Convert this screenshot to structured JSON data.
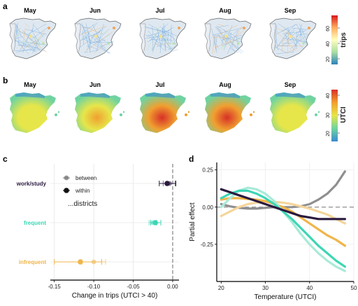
{
  "panels": {
    "a": {
      "letter": "a",
      "months": [
        "May",
        "Jun",
        "Jul",
        "Aug",
        "Sep"
      ],
      "legend_title": "trips",
      "legend_ticks": [
        "20",
        "40",
        "60"
      ],
      "colors": [
        "#2b83ba",
        "#abdda4",
        "#ffffbf",
        "#fdae61",
        "#d7191c"
      ]
    },
    "b": {
      "letter": "b",
      "months": [
        "May",
        "Jun",
        "Jul",
        "Aug",
        "Sep"
      ],
      "legend_title": "UTCI",
      "legend_ticks": [
        "20",
        "30",
        "40"
      ],
      "colors": [
        "#3b8bd0",
        "#6fd3a0",
        "#e6e64a",
        "#f0a030",
        "#d73027"
      ],
      "map_intensity": [
        0.35,
        0.5,
        0.85,
        0.8,
        0.45
      ]
    }
  },
  "chart_data": [
    {
      "panel": "c",
      "type": "scatter",
      "title": "",
      "xlabel": "Change in trips (UTCI > 40)",
      "ylabel": "",
      "xlim": [
        -0.155,
        0.008
      ],
      "xticks": [
        -0.15,
        -0.1,
        -0.05,
        0.0
      ],
      "xtick_labels": [
        "-0.15",
        "-0.10",
        "-0.05",
        "0.00"
      ],
      "categories": [
        "work/study",
        "frequent",
        "infrequent"
      ],
      "category_colors": [
        "#2a1a3f",
        "#3dd6b5",
        "#f0b54a"
      ],
      "series": [
        {
          "name": "between",
          "values": [
            -0.004,
            -0.025,
            -0.1
          ],
          "ci_low": [
            -0.012,
            -0.03,
            -0.115
          ],
          "ci_high": [
            0.003,
            -0.02,
            -0.085
          ]
        },
        {
          "name": "within",
          "values": [
            -0.007,
            -0.022,
            -0.117
          ],
          "ci_low": [
            -0.017,
            -0.028,
            -0.15
          ],
          "ci_high": [
            0.004,
            -0.015,
            -0.09
          ]
        }
      ],
      "legend": {
        "title": "...districts",
        "placement": "top-right"
      }
    },
    {
      "panel": "d",
      "type": "line",
      "title": "",
      "xlabel": "Temperature (UTCI)",
      "ylabel": "Partial effect",
      "xlim": [
        19,
        50
      ],
      "ylim": [
        -0.5,
        0.3
      ],
      "xticks": [
        20,
        30,
        40,
        50
      ],
      "yticks": [
        -0.25,
        0.0,
        0.25
      ],
      "ytick_labels": [
        "-0.25",
        "0.00",
        "0.25"
      ],
      "reference_line": 0.0,
      "x": [
        20,
        22,
        24,
        26,
        28,
        30,
        32,
        34,
        36,
        38,
        40,
        42,
        44,
        46,
        48
      ],
      "series": [
        {
          "color": "#8f8f8f",
          "values": [
            0.02,
            0.005,
            -0.005,
            -0.01,
            -0.01,
            -0.005,
            0.0,
            0.0,
            0.0,
            0.005,
            0.02,
            0.05,
            0.09,
            0.15,
            0.24
          ]
        },
        {
          "color": "#f5d59a",
          "values": [
            -0.06,
            -0.03,
            0.0,
            0.02,
            0.03,
            0.035,
            0.035,
            0.03,
            0.02,
            0.005,
            -0.01,
            -0.03,
            -0.05,
            -0.08,
            -0.11
          ]
        },
        {
          "color": "#f0b54a",
          "values": [
            0.05,
            0.06,
            0.06,
            0.055,
            0.05,
            0.04,
            0.02,
            0.0,
            -0.03,
            -0.07,
            -0.11,
            -0.15,
            -0.19,
            -0.22,
            -0.26
          ]
        },
        {
          "color": "#a8ead8",
          "values": [
            0.0,
            0.06,
            0.11,
            0.13,
            0.12,
            0.09,
            0.04,
            -0.03,
            -0.1,
            -0.18,
            -0.25,
            -0.31,
            -0.36,
            -0.4,
            -0.43
          ]
        },
        {
          "color": "#3dd6b5",
          "values": [
            0.06,
            0.09,
            0.11,
            0.11,
            0.09,
            0.06,
            0.02,
            -0.03,
            -0.08,
            -0.14,
            -0.2,
            -0.26,
            -0.31,
            -0.36,
            -0.4
          ]
        },
        {
          "color": "#2a1a3f",
          "values": [
            0.12,
            0.1,
            0.08,
            0.06,
            0.04,
            0.02,
            0.0,
            -0.02,
            -0.04,
            -0.06,
            -0.07,
            -0.08,
            -0.08,
            -0.08,
            -0.08
          ]
        }
      ]
    }
  ]
}
